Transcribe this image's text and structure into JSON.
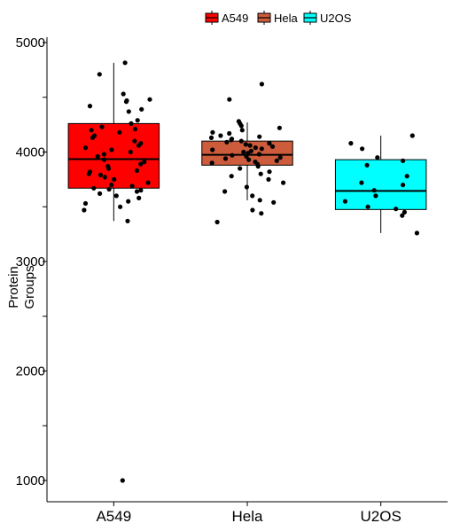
{
  "chart_data": {
    "type": "box",
    "ylabel": "Protein Groups",
    "ylim": [
      900,
      5150
    ],
    "yticks": [
      1000,
      2000,
      3000,
      4000,
      5000
    ],
    "grid": false,
    "legend_position": "top",
    "categories": [
      "A549",
      "Hela",
      "U2OS"
    ],
    "series": [
      {
        "name": "A549",
        "color": "#ff0000",
        "box": {
          "q1": 3670,
          "median": 3935,
          "q3": 4260,
          "whisker_low": 3370,
          "whisker_high": 4815
        },
        "points": [
          4815,
          4710,
          4530,
          4480,
          4470,
          4460,
          4420,
          4390,
          4370,
          4290,
          4260,
          4230,
          4210,
          4200,
          4180,
          4150,
          4130,
          4100,
          4080,
          4060,
          4040,
          4020,
          4000,
          3980,
          3960,
          3930,
          3910,
          3890,
          3870,
          3850,
          3830,
          3820,
          3800,
          3790,
          3770,
          3750,
          3720,
          3700,
          3690,
          3670,
          3660,
          3650,
          3640,
          3620,
          3600,
          3580,
          3550,
          3530,
          3500,
          3470,
          3370,
          1000
        ]
      },
      {
        "name": "Hela",
        "color": "#cd5c3c",
        "box": {
          "q1": 3880,
          "median": 3975,
          "q3": 4100,
          "whisker_low": 3560,
          "whisker_high": 4270
        },
        "points": [
          4620,
          4480,
          4280,
          4260,
          4240,
          4220,
          4200,
          4180,
          4170,
          4150,
          4140,
          4130,
          4120,
          4110,
          4100,
          4090,
          4080,
          4070,
          4060,
          4050,
          4040,
          4030,
          4020,
          4010,
          4000,
          3990,
          3980,
          3970,
          3960,
          3950,
          3940,
          3930,
          3920,
          3910,
          3900,
          3890,
          3870,
          3850,
          3820,
          3800,
          3780,
          3750,
          3720,
          3680,
          3640,
          3600,
          3560,
          3540,
          3470,
          3440,
          3360
        ]
      },
      {
        "name": "U2OS",
        "color": "#00ffff",
        "box": {
          "q1": 3475,
          "median": 3645,
          "q3": 3930,
          "whisker_low": 3260,
          "whisker_high": 4150
        },
        "points": [
          4150,
          4080,
          4030,
          3950,
          3920,
          3880,
          3780,
          3720,
          3700,
          3650,
          3600,
          3550,
          3500,
          3480,
          3450,
          3420,
          3260
        ]
      }
    ]
  }
}
